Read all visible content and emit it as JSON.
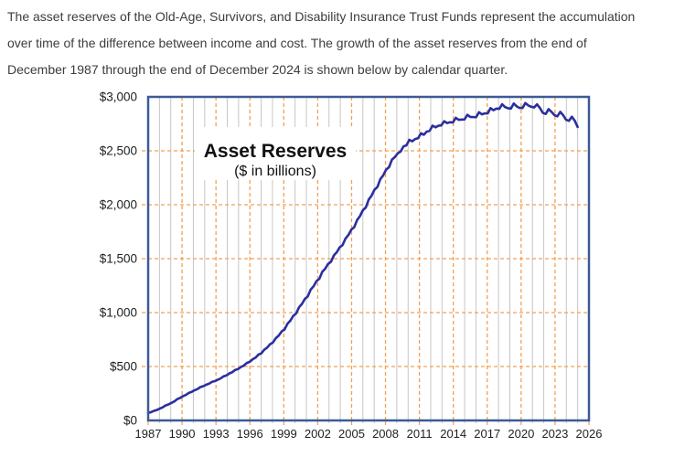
{
  "intro": {
    "lines": [
      "The asset reserves of the Old-Age, Survivors, and Disability Insurance Trust Funds represent the accumulation",
      "over time of the difference between income and cost. The growth of the asset reserves from the end of",
      "December 1987 through the end of December 2024 is shown below by calendar quarter."
    ]
  },
  "colors": {
    "line": "#2a2f9e",
    "frame": "#3c5a96",
    "grid_minor": "#c6c6c6",
    "grid_major": "#f0a055",
    "axis_text": "#1e1e1e",
    "title_text": "#111111",
    "body_text": "#3d3d3d",
    "background": "#ffffff"
  },
  "chart_data": {
    "type": "line",
    "title": "Asset Reserves",
    "subtitle": "($ in billions)",
    "xlabel": "",
    "ylabel": "",
    "legend": "none",
    "grid": "both",
    "x_axis": {
      "min": 1987,
      "max": 2026,
      "tick_step": 3,
      "minor_grid_step": 1,
      "tick_labels": [
        "1987",
        "1990",
        "1993",
        "1996",
        "1999",
        "2002",
        "2005",
        "2008",
        "2011",
        "2014",
        "2017",
        "2020",
        "2023",
        "2026"
      ]
    },
    "y_axis": {
      "min": 0,
      "max": 3000,
      "tick_step": 500,
      "tick_labels": [
        "$0",
        "$500",
        "$1,000",
        "$1,500",
        "$2,000",
        "$2,500",
        "$3,000"
      ]
    },
    "plot_x_year_start": 1987,
    "plot_x_year_end": 2025,
    "series": [
      {
        "name": "OASDI trust fund asset reserves",
        "frequency": "quarterly",
        "start": "1987 Q4",
        "end": "2024 Q4",
        "values": [
          68.8,
          76.9,
          88.6,
          97.0,
          109.8,
          121.0,
          138.8,
          148.6,
          163.0,
          176.4,
          197.6,
          208.5,
          225.3,
          236.5,
          255.4,
          264.5,
          280.7,
          290.9,
          309.3,
          317.4,
          331.5,
          340.9,
          357.5,
          364.7,
          378.3,
          389.6,
          409.7,
          418.2,
          436.4,
          447.7,
          468.3,
          477.0,
          496.1,
          509.7,
          533.0,
          543.2,
          567.0,
          582.6,
          610.1,
          622.0,
          655.5,
          675.5,
          707.0,
          721.7,
          762.5,
          787.4,
          825.8,
          843.6,
          896.1,
          925.4,
          970.6,
          991.8,
          1049.4,
          1080.1,
          1127.3,
          1149.4,
          1212.5,
          1243.7,
          1291.6,
          1313.9,
          1378.0,
          1406.6,
          1451.0,
          1471.5,
          1530.8,
          1560.1,
          1605.1,
          1626.1,
          1686.8,
          1719.1,
          1768.6,
          1791.6,
          1858.7,
          1894.3,
          1948.9,
          1974.3,
          2048.1,
          2084.0,
          2138.9,
          2164.5,
          2238.5,
          2272.4,
          2324.3,
          2348.4,
          2418.7,
          2441.6,
          2476.6,
          2492.9,
          2540.3,
          2551.2,
          2601.4,
          2588.5,
          2609.0,
          2616.4,
          2663.1,
          2648.9,
          2677.9,
          2685.9,
          2733.4,
          2718.0,
          2732.3,
          2735.6,
          2774.7,
          2757.9,
          2764.4,
          2763.0,
          2805.6,
          2787.3,
          2789.5,
          2790.8,
          2833.9,
          2814.1,
          2812.5,
          2811.7,
          2857.4,
          2838.2,
          2847.7,
          2846.9,
          2895.9,
          2876.1,
          2891.8,
          2889.0,
          2932.6,
          2904.7,
          2895.2,
          2891.6,
          2938.9,
          2911.8,
          2897.4,
          2896.8,
          2943.5,
          2920.6,
          2908.3,
          2901.9,
          2931.7,
          2896.5,
          2852.0,
          2841.8,
          2886.6,
          2861.0,
          2830.1,
          2819.6,
          2860.9,
          2830.9,
          2788.5,
          2777.8,
          2815.8,
          2779.1,
          2721.5
        ]
      }
    ]
  }
}
